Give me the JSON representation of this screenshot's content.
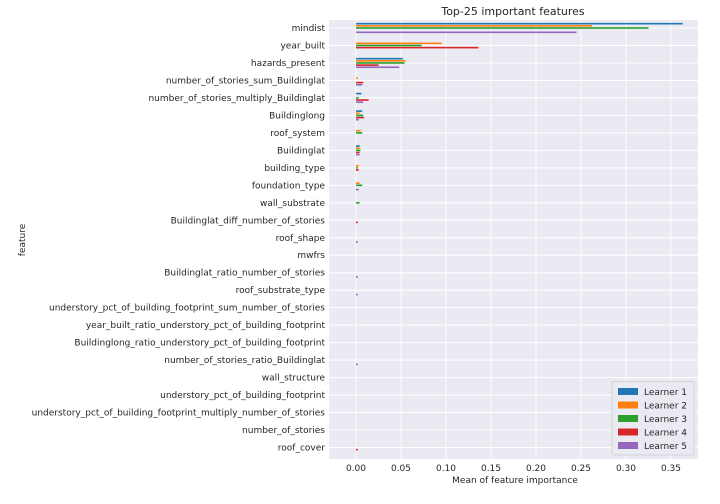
{
  "chart_data": {
    "type": "bar",
    "orientation": "horizontal",
    "title": "Top-25 important features",
    "xlabel": "Mean of feature importance",
    "ylabel": "feature",
    "xlim": [
      -0.03,
      0.38
    ],
    "xticks": [
      "0.00",
      "0.05",
      "0.10",
      "0.15",
      "0.20",
      "0.25",
      "0.30",
      "0.35"
    ],
    "grid": true,
    "legend_position": "bottom-right",
    "categories": [
      "mindist",
      "year_built",
      "hazards_present",
      "number_of_stories_sum_Buildinglat",
      "number_of_stories_multiply_Buildinglat",
      "Buildinglong",
      "roof_system",
      "Buildinglat",
      "building_type",
      "foundation_type",
      "wall_substrate",
      "Buildinglat_diff_number_of_stories",
      "roof_shape",
      "mwfrs",
      "Buildinglat_ratio_number_of_stories",
      "roof_substrate_type",
      "understory_pct_of_building_footprint_sum_number_of_stories",
      "year_built_ratio_understory_pct_of_building_footprint",
      "Buildinglong_ratio_understory_pct_of_building_footprint",
      "number_of_stories_ratio_Buildinglat",
      "wall_structure",
      "understory_pct_of_building_footprint",
      "understory_pct_of_building_footprint_multiply_number_of_stories",
      "number_of_stories",
      "roof_cover"
    ],
    "series": [
      {
        "name": "Learner 1",
        "color": "#1f77b4",
        "values": [
          0.363,
          0.0,
          0.052,
          0.0,
          0.006,
          0.007,
          0.0,
          0.004,
          0.0,
          0.0,
          0.0,
          0.0,
          0.0,
          0.0,
          0.0,
          0.0,
          0.0,
          0.0,
          0.0,
          0.0,
          0.0,
          0.0,
          0.0,
          0.0,
          0.0
        ]
      },
      {
        "name": "Learner 2",
        "color": "#ff7f0e",
        "values": [
          0.262,
          0.095,
          0.055,
          0.002,
          0.0,
          0.004,
          0.005,
          0.004,
          0.003,
          0.004,
          0.0,
          0.0,
          0.0,
          0.0,
          0.0,
          0.0,
          0.0,
          0.0,
          0.0,
          0.0,
          0.0,
          0.0,
          0.0,
          0.0,
          0.0
        ]
      },
      {
        "name": "Learner 3",
        "color": "#2ca02c",
        "values": [
          0.325,
          0.073,
          0.054,
          0.0,
          0.003,
          0.008,
          0.007,
          0.005,
          0.002,
          0.007,
          0.004,
          0.0,
          0.0,
          0.0,
          0.0,
          0.0,
          0.0,
          0.0,
          0.0,
          0.0,
          0.0,
          0.0,
          0.0,
          0.0,
          0.0
        ]
      },
      {
        "name": "Learner 4",
        "color": "#d62728",
        "values": [
          0.0,
          0.136,
          0.025,
          0.008,
          0.014,
          0.009,
          0.0,
          0.004,
          0.003,
          0.0,
          0.0,
          0.002,
          0.0,
          0.0,
          0.0,
          0.0,
          0.0,
          0.0,
          0.0,
          0.0,
          0.0,
          0.0,
          0.0,
          0.0,
          0.002
        ]
      },
      {
        "name": "Learner 5",
        "color": "#9467bd",
        "values": [
          0.245,
          0.0,
          0.048,
          0.007,
          0.008,
          0.003,
          0.0,
          0.004,
          0.0,
          0.003,
          0.0,
          0.0,
          0.002,
          0.0,
          0.002,
          0.002,
          0.0,
          0.0,
          0.0,
          0.002,
          0.0,
          0.0,
          0.0,
          0.0,
          0.0
        ]
      }
    ]
  }
}
